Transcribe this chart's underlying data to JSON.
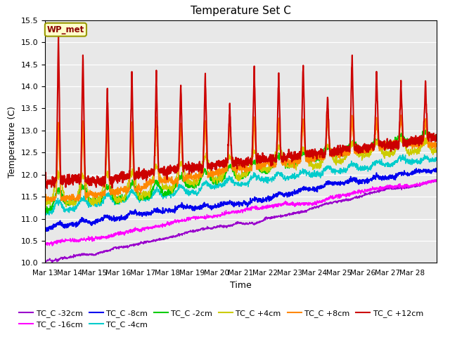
{
  "title": "Temperature Set C",
  "xlabel": "Time",
  "ylabel": "Temperature (C)",
  "ylim": [
    10.0,
    15.5
  ],
  "yticks": [
    10.0,
    10.5,
    11.0,
    11.5,
    12.0,
    12.5,
    13.0,
    13.5,
    14.0,
    14.5,
    15.0,
    15.5
  ],
  "bg_color": "#e8e8e8",
  "xtick_labels": [
    "Mar 13",
    "Mar 14",
    "Mar 15",
    "Mar 16",
    "Mar 17",
    "Mar 18",
    "Mar 19",
    "Mar 20",
    "Mar 21",
    "Mar 22",
    "Mar 23",
    "Mar 24",
    "Mar 25",
    "Mar 26",
    "Mar 27",
    "Mar 28",
    ""
  ],
  "n_days": 16,
  "pts_per_day": 144,
  "legend_label": "WP_met",
  "legend_bg": "#ffffcc",
  "legend_edge": "#999900",
  "series_colors": [
    "#9900cc",
    "#ff00ff",
    "#0000ee",
    "#00cccc",
    "#00cc00",
    "#cccc00",
    "#ff8800",
    "#cc0000"
  ],
  "series_names": [
    "TC_C -32cm",
    "TC_C -16cm",
    "TC_C -8cm",
    "TC_C -4cm",
    "TC_C -2cm",
    "TC_C +4cm",
    "TC_C +8cm",
    "TC_C +12cm"
  ],
  "series_lw": [
    1.0,
    1.0,
    1.2,
    1.0,
    1.0,
    1.0,
    1.2,
    1.5
  ]
}
